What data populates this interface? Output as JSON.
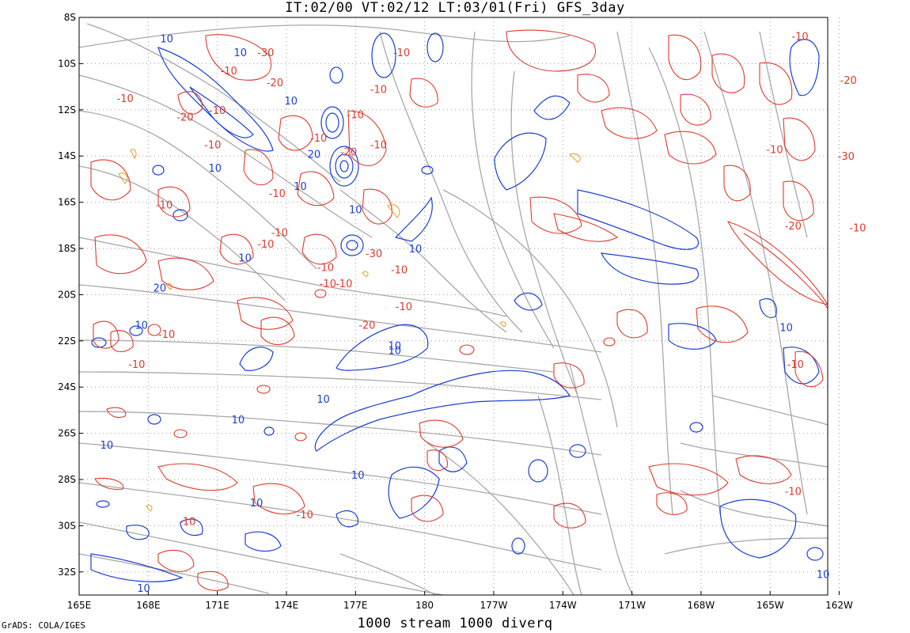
{
  "header": {
    "title": "IT:02/00  VT:02/12  LT:03/01(Fri)  GFS_3day"
  },
  "footer": {
    "subtitle": "1000 stream 1000 diverq",
    "credit": "GrADS: COLA/IGES"
  },
  "colors": {
    "negative": "#e03a2c",
    "positive": "#1a3fd6",
    "stream": "#a8a8a8",
    "minor": "#e0a020",
    "grid": "#9a9a9a"
  },
  "map_data": {
    "type": "contour_streamline_map",
    "lon_labels": [
      "165E",
      "168E",
      "171E",
      "174E",
      "177E",
      "180",
      "177W",
      "174W",
      "171W",
      "168W",
      "165W",
      "162W"
    ],
    "lat_labels": [
      "8S",
      "10S",
      "12S",
      "14S",
      "16S",
      "18S",
      "20S",
      "22S",
      "24S",
      "26S",
      "28S",
      "30S",
      "32S"
    ],
    "contour_labels": [
      {
        "text": "10",
        "color": "positive",
        "lon": 168.8,
        "lat": -8.9
      },
      {
        "text": "-10",
        "color": "negative",
        "lon": 179.0,
        "lat": -9.5
      },
      {
        "text": "-30",
        "color": "negative",
        "lon": 173.1,
        "lat": -9.5
      },
      {
        "text": "-10",
        "color": "negative",
        "lon": 163.7,
        "lat": -8.8
      },
      {
        "text": "10",
        "color": "positive",
        "lon": 172.0,
        "lat": -9.5
      },
      {
        "text": "-20",
        "color": "negative",
        "lon": 173.5,
        "lat": -10.8
      },
      {
        "text": "-10",
        "color": "negative",
        "lon": 178.0,
        "lat": -11.1
      },
      {
        "text": "-10",
        "color": "negative",
        "lon": 171.5,
        "lat": -10.3
      },
      {
        "text": "-20",
        "color": "negative",
        "lon": 161.6,
        "lat": -10.7
      },
      {
        "text": "10",
        "color": "positive",
        "lon": 174.2,
        "lat": -11.6
      },
      {
        "text": "-10",
        "color": "negative",
        "lon": 177.0,
        "lat": -12.2
      },
      {
        "text": "-10",
        "color": "negative",
        "lon": 171.0,
        "lat": -12.0
      },
      {
        "text": "-20",
        "color": "negative",
        "lon": 169.6,
        "lat": -12.3
      },
      {
        "text": "-10",
        "color": "negative",
        "lon": 167.0,
        "lat": -11.5
      },
      {
        "text": "-10",
        "color": "negative",
        "lon": 175.4,
        "lat": -13.2
      },
      {
        "text": "-10",
        "color": "negative",
        "lon": 170.8,
        "lat": -13.5
      },
      {
        "text": "-20",
        "color": "negative",
        "lon": 176.7,
        "lat": -13.8
      },
      {
        "text": "-10",
        "color": "negative",
        "lon": 178.0,
        "lat": -13.5
      },
      {
        "text": "20",
        "color": "positive",
        "lon": 175.2,
        "lat": -13.9
      },
      {
        "text": "-10",
        "color": "negative",
        "lon": 164.8,
        "lat": -13.7
      },
      {
        "text": "-30",
        "color": "negative",
        "lon": 161.7,
        "lat": -14.0
      },
      {
        "text": "10",
        "color": "positive",
        "lon": 170.9,
        "lat": -14.5
      },
      {
        "text": "10",
        "color": "positive",
        "lon": 174.6,
        "lat": -15.3
      },
      {
        "text": "-10",
        "color": "negative",
        "lon": 173.6,
        "lat": -15.6
      },
      {
        "text": "10",
        "color": "positive",
        "lon": 177.0,
        "lat": -16.3
      },
      {
        "text": "-10",
        "color": "negative",
        "lon": 168.7,
        "lat": -16.1
      },
      {
        "text": "-20",
        "color": "negative",
        "lon": 164.0,
        "lat": -17.0
      },
      {
        "text": "-10",
        "color": "negative",
        "lon": 161.2,
        "lat": -17.1
      },
      {
        "text": "-10",
        "color": "negative",
        "lon": 173.1,
        "lat": -17.8
      },
      {
        "text": "-10",
        "color": "negative",
        "lon": 173.7,
        "lat": -17.3
      },
      {
        "text": "10",
        "color": "positive",
        "lon": 179.6,
        "lat": -18.0
      },
      {
        "text": "-30",
        "color": "negative",
        "lon": 177.8,
        "lat": -18.2
      },
      {
        "text": "-10",
        "color": "negative",
        "lon": 175.7,
        "lat": -18.8
      },
      {
        "text": "-10",
        "color": "negative",
        "lon": 178.9,
        "lat": -18.9
      },
      {
        "text": "10",
        "color": "positive",
        "lon": 172.2,
        "lat": -18.4
      },
      {
        "text": "-10",
        "color": "negative",
        "lon": 175.8,
        "lat": -19.5
      },
      {
        "text": "20",
        "color": "positive",
        "lon": 168.5,
        "lat": -19.7
      },
      {
        "text": "-10",
        "color": "negative",
        "lon": 176.5,
        "lat": -19.5
      },
      {
        "text": "-10",
        "color": "negative",
        "lon": 179.1,
        "lat": -20.5
      },
      {
        "text": "-20",
        "color": "negative",
        "lon": 177.5,
        "lat": -21.3
      },
      {
        "text": "-10",
        "color": "negative",
        "lon": 168.8,
        "lat": -21.7
      },
      {
        "text": "10",
        "color": "positive",
        "lon": 167.7,
        "lat": -21.3
      },
      {
        "text": "10",
        "color": "positive",
        "lon": 164.3,
        "lat": -21.4
      },
      {
        "text": "-10",
        "color": "negative",
        "lon": 167.5,
        "lat": -23.0
      },
      {
        "text": "10",
        "color": "positive",
        "lon": 178.7,
        "lat": -22.4
      },
      {
        "text": "10",
        "color": "positive",
        "lon": 178.7,
        "lat": -22.2
      },
      {
        "text": "-10",
        "color": "negative",
        "lon": 163.9,
        "lat": -23.0
      },
      {
        "text": "10",
        "color": "positive",
        "lon": 175.6,
        "lat": -24.5
      },
      {
        "text": "10",
        "color": "positive",
        "lon": 171.9,
        "lat": -25.4
      },
      {
        "text": "10",
        "color": "positive",
        "lon": 166.2,
        "lat": -26.5
      },
      {
        "text": "10",
        "color": "positive",
        "lon": 177.1,
        "lat": -27.8
      },
      {
        "text": "10",
        "color": "positive",
        "lon": 172.7,
        "lat": -29.0
      },
      {
        "text": "-10",
        "color": "negative",
        "lon": 174.8,
        "lat": -29.5
      },
      {
        "text": "-10",
        "color": "negative",
        "lon": 169.7,
        "lat": -29.8
      },
      {
        "text": "-10",
        "color": "negative",
        "lon": 164.0,
        "lat": -28.5
      },
      {
        "text": "10",
        "color": "positive",
        "lon": 162.7,
        "lat": -32.1
      },
      {
        "text": "10",
        "color": "positive",
        "lon": 167.8,
        "lat": -32.7
      }
    ]
  }
}
